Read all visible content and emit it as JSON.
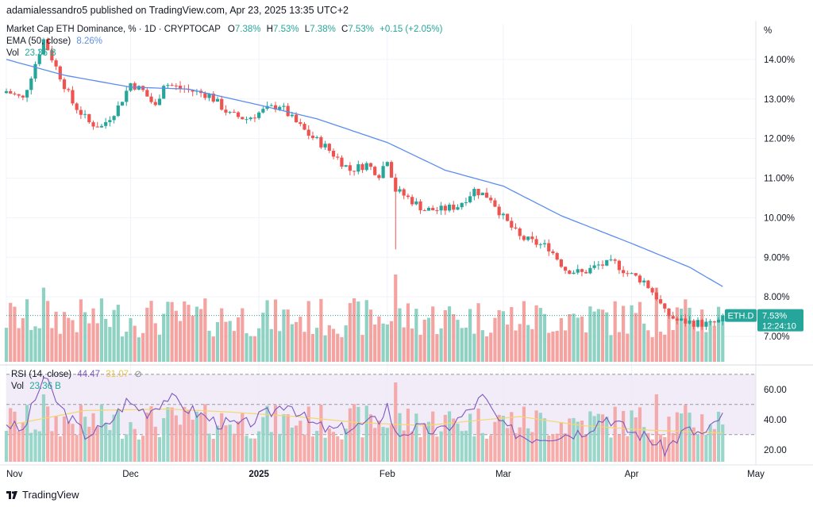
{
  "header": {
    "published_by": "adamialessandro5 published on TradingView.com, Apr 23, 2025 13:35 UTC+2"
  },
  "legend": {
    "title": "Market Cap ETH Dominance, % · 1D · CRYPTOCAP",
    "o_label": "O",
    "o_value": "7.38%",
    "h_label": "H",
    "h_value": "7.53%",
    "l_label": "L",
    "l_value": "7.38%",
    "c_label": "C",
    "c_value": "7.53%",
    "change": "+0.15 (+2.05%)",
    "ema_label": "EMA (50, close)",
    "ema_value": "8.26%",
    "vol_label": "Vol",
    "vol_value": "23.36 B"
  },
  "rsi_legend": {
    "label": "RSI (14, close)",
    "value1": "44.47",
    "value2": "31.07",
    "vol_label": "Vol",
    "vol_value": "23.36 B"
  },
  "price_tag": {
    "symbol": "ETH.D",
    "price": "7.53%",
    "countdown": "12:24:10"
  },
  "footer": {
    "brand": "TradingView"
  },
  "colors": {
    "up": "#26a69a",
    "down": "#ef5350",
    "ema": "#5b8def",
    "rsi": "#7e57c2",
    "rsi_ma": "#f5d76e",
    "vol_up": "#8fd1c3",
    "vol_down": "#f4a3a1",
    "tag": "#26a69a",
    "rsi_band": "#ede7f6"
  },
  "chart_data": [
    {
      "type": "candlestick",
      "title": "Market Cap ETH Dominance, %",
      "ylabel": "%",
      "ylim": [
        6.6,
        14.9
      ],
      "y_ticks": [
        "14.00%",
        "13.00%",
        "12.00%",
        "11.00%",
        "10.00%",
        "9.00%",
        "8.00%",
        "7.00%"
      ],
      "y_tick_values": [
        14,
        13,
        12,
        11,
        10,
        9,
        8,
        7
      ],
      "x_ticks": [
        "Nov",
        "Dec",
        "2025",
        "Feb",
        "Mar",
        "Apr",
        "May"
      ],
      "x_tick_dates": [
        "2024-11-01",
        "2024-12-01",
        "2025-01-01",
        "2025-02-01",
        "2025-03-01",
        "2025-04-01",
        "2025-05-01"
      ],
      "x_range": [
        "2024-11-01",
        "2025-05-01"
      ],
      "last_date": "2025-04-23",
      "close_anchors": [
        [
          "2024-11-01",
          13.2
        ],
        [
          "2024-11-05",
          13.0
        ],
        [
          "2024-11-08",
          13.9
        ],
        [
          "2024-11-10",
          14.5
        ],
        [
          "2024-11-13",
          13.8
        ],
        [
          "2024-11-17",
          12.9
        ],
        [
          "2024-11-21",
          12.4
        ],
        [
          "2024-11-24",
          12.3
        ],
        [
          "2024-11-28",
          12.8
        ],
        [
          "2024-12-01",
          13.4
        ],
        [
          "2024-12-04",
          13.2
        ],
        [
          "2024-12-07",
          12.8
        ],
        [
          "2024-12-09",
          13.4
        ],
        [
          "2024-12-12",
          13.3
        ],
        [
          "2024-12-16",
          13.2
        ],
        [
          "2024-12-20",
          13.1
        ],
        [
          "2024-12-25",
          12.6
        ],
        [
          "2024-12-29",
          12.5
        ],
        [
          "2025-01-02",
          12.7
        ],
        [
          "2025-01-06",
          12.85
        ],
        [
          "2025-01-09",
          12.5
        ],
        [
          "2025-01-13",
          12.1
        ],
        [
          "2025-01-17",
          11.8
        ],
        [
          "2025-01-20",
          11.5
        ],
        [
          "2025-01-23",
          11.2
        ],
        [
          "2025-01-27",
          11.35
        ],
        [
          "2025-01-30",
          11.1
        ],
        [
          "2025-02-01",
          11.5
        ],
        [
          "2025-02-03",
          10.7
        ],
        [
          "2025-02-06",
          10.5
        ],
        [
          "2025-02-10",
          10.2
        ],
        [
          "2025-02-14",
          10.2
        ],
        [
          "2025-02-18",
          10.3
        ],
        [
          "2025-02-22",
          10.7
        ],
        [
          "2025-02-26",
          10.5
        ],
        [
          "2025-03-01",
          10.0
        ],
        [
          "2025-03-05",
          9.5
        ],
        [
          "2025-03-09",
          9.35
        ],
        [
          "2025-03-12",
          9.25
        ],
        [
          "2025-03-16",
          8.7
        ],
        [
          "2025-03-20",
          8.6
        ],
        [
          "2025-03-24",
          8.8
        ],
        [
          "2025-03-28",
          8.85
        ],
        [
          "2025-03-31",
          8.6
        ],
        [
          "2025-04-04",
          8.4
        ],
        [
          "2025-04-07",
          8.0
        ],
        [
          "2025-04-09",
          7.6
        ],
        [
          "2025-04-12",
          7.4
        ],
        [
          "2025-04-16",
          7.35
        ],
        [
          "2025-04-20",
          7.3
        ],
        [
          "2025-04-22",
          7.38
        ],
        [
          "2025-04-23",
          7.53
        ]
      ],
      "spikes": [
        [
          "2025-02-03",
          9.2
        ]
      ],
      "ema_anchors": [
        [
          "2024-11-01",
          14.0
        ],
        [
          "2024-11-15",
          13.6
        ],
        [
          "2024-12-01",
          13.3
        ],
        [
          "2024-12-15",
          13.25
        ],
        [
          "2025-01-01",
          12.85
        ],
        [
          "2025-01-15",
          12.5
        ],
        [
          "2025-02-01",
          11.9
        ],
        [
          "2025-02-15",
          11.2
        ],
        [
          "2025-03-01",
          10.8
        ],
        [
          "2025-03-15",
          10.05
        ],
        [
          "2025-04-01",
          9.35
        ],
        [
          "2025-04-15",
          8.75
        ],
        [
          "2025-04-23",
          8.26
        ]
      ]
    },
    {
      "type": "bar",
      "title": "Vol",
      "last_value": "23.36 B",
      "notable_peaks": [
        [
          "2024-11-10",
          "high"
        ],
        [
          "2025-02-03",
          "highest"
        ],
        [
          "2025-04-07",
          "high"
        ]
      ]
    },
    {
      "type": "line",
      "title": "RSI (14, close)",
      "ylim": [
        12,
        72
      ],
      "y_ticks": [
        "60.00",
        "40.00",
        "20.00"
      ],
      "y_tick_values": [
        60,
        40,
        20
      ],
      "bands": [
        70,
        30
      ],
      "rsi_anchors": [
        [
          "2024-11-01",
          38
        ],
        [
          "2024-11-05",
          32
        ],
        [
          "2024-11-10",
          68
        ],
        [
          "2024-11-14",
          48
        ],
        [
          "2024-11-20",
          30
        ],
        [
          "2024-11-25",
          35
        ],
        [
          "2024-11-30",
          52
        ],
        [
          "2024-12-05",
          45
        ],
        [
          "2024-12-10",
          55
        ],
        [
          "2024-12-15",
          47
        ],
        [
          "2024-12-22",
          38
        ],
        [
          "2024-12-28",
          36
        ],
        [
          "2025-01-04",
          45
        ],
        [
          "2025-01-08",
          52
        ],
        [
          "2025-01-13",
          38
        ],
        [
          "2025-01-18",
          33
        ],
        [
          "2025-01-24",
          35
        ],
        [
          "2025-01-30",
          40
        ],
        [
          "2025-02-01",
          50
        ],
        [
          "2025-02-03",
          30
        ],
        [
          "2025-02-08",
          34
        ],
        [
          "2025-02-14",
          32
        ],
        [
          "2025-02-20",
          44
        ],
        [
          "2025-02-24",
          55
        ],
        [
          "2025-03-01",
          35
        ],
        [
          "2025-03-07",
          28
        ],
        [
          "2025-03-14",
          30
        ],
        [
          "2025-03-20",
          32
        ],
        [
          "2025-03-26",
          42
        ],
        [
          "2025-03-31",
          33
        ],
        [
          "2025-04-05",
          28
        ],
        [
          "2025-04-09",
          20
        ],
        [
          "2025-04-14",
          33
        ],
        [
          "2025-04-19",
          30
        ],
        [
          "2025-04-23",
          44.47
        ]
      ],
      "ma_anchors": [
        [
          "2024-11-01",
          36
        ],
        [
          "2024-11-20",
          46
        ],
        [
          "2024-12-10",
          47
        ],
        [
          "2024-12-25",
          45
        ],
        [
          "2025-01-10",
          42
        ],
        [
          "2025-01-25",
          38
        ],
        [
          "2025-02-10",
          36
        ],
        [
          "2025-02-25",
          40
        ],
        [
          "2025-03-05",
          42
        ],
        [
          "2025-03-20",
          36
        ],
        [
          "2025-04-05",
          33
        ],
        [
          "2025-04-23",
          31.07
        ]
      ]
    }
  ]
}
